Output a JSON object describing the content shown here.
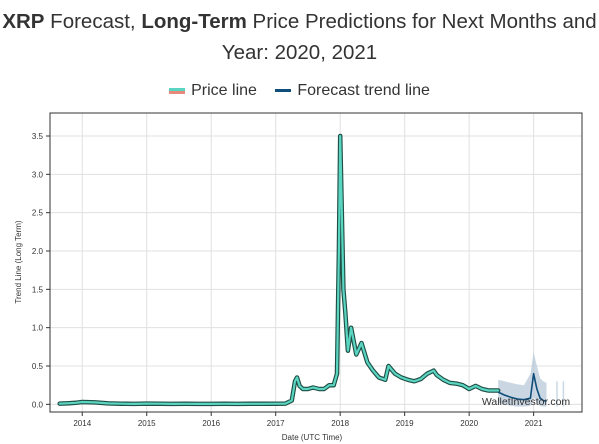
{
  "header": {
    "title_bold_1": "XRP",
    "title_part_1": " Forecast, ",
    "title_bold_2": "Long-Term",
    "title_part_2": " Price Predictions for Next Months and",
    "title_line_2": "Year: 2020, 2021"
  },
  "legend": {
    "price_label": "Price line",
    "forecast_label": "Forecast trend line"
  },
  "watermark": "WalletInvestor.com",
  "colors": {
    "price_line": "#5ad5c2",
    "price_line_alt": "#e8897c",
    "price_line_outline": "#1f4f45",
    "forecast_line": "#0f4d7a",
    "forecast_band": "#b8c9d9",
    "grid": "#e0e0e0",
    "axis": "#333333"
  },
  "chart_data": {
    "type": "line",
    "xlabel": "Date (UTC Time)",
    "ylabel": "Trend Line (Long Term)",
    "xlim": [
      2013.5,
      2021.75
    ],
    "ylim": [
      -0.1,
      3.8
    ],
    "x_ticks": [
      2014,
      2015,
      2016,
      2017,
      2018,
      2019,
      2020,
      2021
    ],
    "x_tick_labels": [
      "2014",
      "2015",
      "2016",
      "2017",
      "2018",
      "2019",
      "2020",
      "2021"
    ],
    "y_ticks": [
      0.0,
      0.5,
      1.0,
      1.5,
      2.0,
      2.5,
      3.0,
      3.5
    ],
    "y_tick_labels": [
      "0.0",
      "0.5",
      "1.0",
      "1.5",
      "2.0",
      "2.5",
      "3.0",
      "3.5"
    ],
    "grid": true,
    "legend_position": "top-center",
    "series": [
      {
        "name": "Price line",
        "x": [
          2013.65,
          2013.8,
          2013.9,
          2014.0,
          2014.2,
          2014.4,
          2014.6,
          2014.8,
          2015.0,
          2015.2,
          2015.4,
          2015.6,
          2015.8,
          2016.0,
          2016.2,
          2016.4,
          2016.6,
          2016.8,
          2017.0,
          2017.15,
          2017.25,
          2017.3,
          2017.33,
          2017.37,
          2017.42,
          2017.5,
          2017.58,
          2017.67,
          2017.75,
          2017.83,
          2017.9,
          2017.95,
          2017.98,
          2018.0,
          2018.02,
          2018.05,
          2018.08,
          2018.12,
          2018.17,
          2018.25,
          2018.33,
          2018.42,
          2018.5,
          2018.6,
          2018.7,
          2018.75,
          2018.85,
          2018.95,
          2019.05,
          2019.15,
          2019.25,
          2019.35,
          2019.45,
          2019.5,
          2019.6,
          2019.7,
          2019.8,
          2019.9,
          2020.0,
          2020.1,
          2020.2,
          2020.3,
          2020.45
        ],
        "y": [
          0.01,
          0.015,
          0.02,
          0.03,
          0.025,
          0.012,
          0.008,
          0.006,
          0.01,
          0.008,
          0.006,
          0.007,
          0.006,
          0.006,
          0.007,
          0.006,
          0.007,
          0.007,
          0.008,
          0.01,
          0.05,
          0.3,
          0.35,
          0.24,
          0.2,
          0.2,
          0.22,
          0.2,
          0.2,
          0.25,
          0.25,
          0.4,
          2.0,
          3.5,
          2.7,
          1.5,
          1.2,
          0.7,
          1.0,
          0.65,
          0.8,
          0.55,
          0.45,
          0.35,
          0.32,
          0.5,
          0.4,
          0.35,
          0.32,
          0.3,
          0.33,
          0.4,
          0.44,
          0.38,
          0.32,
          0.28,
          0.27,
          0.25,
          0.2,
          0.24,
          0.2,
          0.18,
          0.18
        ]
      },
      {
        "name": "Forecast trend line",
        "x": [
          2020.45,
          2020.55,
          2020.65,
          2020.75,
          2020.85,
          2020.95,
          2021.0,
          2021.05,
          2021.1,
          2021.15,
          2021.2
        ],
        "y": [
          0.16,
          0.12,
          0.09,
          0.07,
          0.06,
          0.08,
          0.4,
          0.2,
          0.08,
          0.05,
          0.04
        ]
      }
    ],
    "forecast_band": {
      "x": [
        2020.45,
        2020.55,
        2020.65,
        2020.75,
        2020.85,
        2020.95,
        2021.0,
        2021.05,
        2021.1,
        2021.15,
        2021.2
      ],
      "upper": [
        0.32,
        0.3,
        0.28,
        0.26,
        0.25,
        0.4,
        0.68,
        0.5,
        0.34,
        0.3,
        0.28
      ],
      "lower": [
        0.02,
        0.0,
        -0.02,
        -0.03,
        -0.03,
        -0.02,
        0.1,
        0.02,
        -0.02,
        -0.03,
        -0.03
      ]
    },
    "forecast_band_extra": {
      "x": [
        2021.35,
        2021.37,
        2021.45,
        2021.47
      ],
      "upper": [
        0.3,
        0.3,
        0.3,
        0.3
      ],
      "lower": [
        -0.03,
        -0.03,
        -0.03,
        -0.03
      ]
    }
  }
}
